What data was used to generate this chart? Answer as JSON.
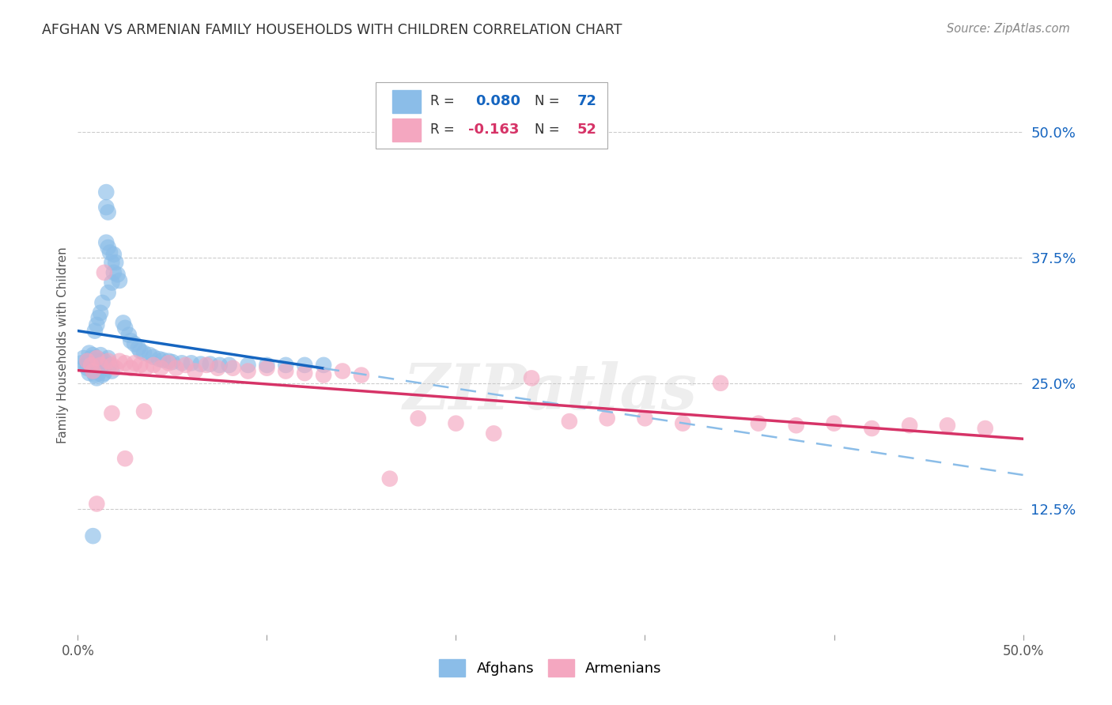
{
  "title": "AFGHAN VS ARMENIAN FAMILY HOUSEHOLDS WITH CHILDREN CORRELATION CHART",
  "source": "Source: ZipAtlas.com",
  "ylabel": "Family Households with Children",
  "xlim": [
    0.0,
    0.5
  ],
  "ylim": [
    0.0,
    0.575
  ],
  "yticks": [
    0.125,
    0.25,
    0.375,
    0.5
  ],
  "yticklabels": [
    "12.5%",
    "25.0%",
    "37.5%",
    "50.0%"
  ],
  "xtick_positions": [
    0.0,
    0.1,
    0.2,
    0.3,
    0.4,
    0.5
  ],
  "xticklabels": [
    "0.0%",
    "",
    "",
    "",
    "",
    "50.0%"
  ],
  "afghan_R": 0.08,
  "afghan_N": 72,
  "armenian_R": -0.163,
  "armenian_N": 52,
  "afghan_color": "#8bbde8",
  "armenian_color": "#f4a7c0",
  "afghan_line_color": "#1565c0",
  "armenian_line_color": "#d63367",
  "afghan_dash_color": "#8bbde8",
  "background_color": "#ffffff",
  "grid_color": "#cccccc",
  "title_color": "#333333",
  "watermark_color": "#c8c8c8",
  "watermark_text": "ZIPatlas",
  "legend_R_color": "#1565c0",
  "legend_N_color": "#1565c0",
  "legend_R2_color": "#d63367",
  "legend_N2_color": "#d63367",
  "legend_text_color": "#333333",
  "afghan_x": [
    0.002,
    0.003,
    0.004,
    0.005,
    0.005,
    0.006,
    0.006,
    0.007,
    0.007,
    0.008,
    0.008,
    0.009,
    0.009,
    0.01,
    0.01,
    0.01,
    0.011,
    0.011,
    0.012,
    0.012,
    0.013,
    0.013,
    0.014,
    0.014,
    0.015,
    0.015,
    0.016,
    0.016,
    0.017,
    0.018,
    0.019,
    0.02,
    0.021,
    0.022,
    0.024,
    0.025,
    0.027,
    0.028,
    0.03,
    0.032,
    0.033,
    0.035,
    0.038,
    0.04,
    0.043,
    0.045,
    0.048,
    0.05,
    0.055,
    0.06,
    0.065,
    0.07,
    0.075,
    0.08,
    0.09,
    0.1,
    0.11,
    0.12,
    0.13,
    0.015,
    0.016,
    0.017,
    0.018,
    0.019,
    0.018,
    0.016,
    0.013,
    0.012,
    0.011,
    0.01,
    0.009,
    0.008
  ],
  "afghan_y": [
    0.27,
    0.275,
    0.268,
    0.272,
    0.265,
    0.28,
    0.26,
    0.275,
    0.265,
    0.278,
    0.262,
    0.27,
    0.258,
    0.275,
    0.268,
    0.255,
    0.272,
    0.26,
    0.278,
    0.265,
    0.27,
    0.258,
    0.272,
    0.26,
    0.44,
    0.425,
    0.42,
    0.275,
    0.268,
    0.262,
    0.378,
    0.37,
    0.358,
    0.352,
    0.31,
    0.305,
    0.298,
    0.292,
    0.289,
    0.285,
    0.282,
    0.28,
    0.278,
    0.276,
    0.274,
    0.273,
    0.272,
    0.271,
    0.27,
    0.27,
    0.269,
    0.269,
    0.268,
    0.268,
    0.268,
    0.268,
    0.268,
    0.268,
    0.268,
    0.39,
    0.385,
    0.38,
    0.37,
    0.36,
    0.35,
    0.34,
    0.33,
    0.32,
    0.315,
    0.308,
    0.302,
    0.098
  ],
  "armenian_x": [
    0.005,
    0.007,
    0.008,
    0.01,
    0.012,
    0.014,
    0.016,
    0.018,
    0.02,
    0.022,
    0.025,
    0.028,
    0.03,
    0.033,
    0.036,
    0.04,
    0.044,
    0.048,
    0.052,
    0.057,
    0.062,
    0.068,
    0.074,
    0.082,
    0.09,
    0.1,
    0.11,
    0.12,
    0.13,
    0.14,
    0.15,
    0.165,
    0.18,
    0.2,
    0.22,
    0.24,
    0.26,
    0.28,
    0.3,
    0.32,
    0.34,
    0.36,
    0.38,
    0.4,
    0.42,
    0.44,
    0.46,
    0.48,
    0.01,
    0.018,
    0.025,
    0.035
  ],
  "armenian_y": [
    0.272,
    0.268,
    0.262,
    0.275,
    0.268,
    0.36,
    0.272,
    0.268,
    0.265,
    0.272,
    0.27,
    0.265,
    0.27,
    0.268,
    0.265,
    0.268,
    0.265,
    0.27,
    0.265,
    0.268,
    0.262,
    0.268,
    0.265,
    0.265,
    0.262,
    0.265,
    0.262,
    0.26,
    0.258,
    0.262,
    0.258,
    0.155,
    0.215,
    0.21,
    0.2,
    0.255,
    0.212,
    0.215,
    0.215,
    0.21,
    0.25,
    0.21,
    0.208,
    0.21,
    0.205,
    0.208,
    0.208,
    0.205,
    0.13,
    0.22,
    0.175,
    0.222
  ],
  "trend_solid_end": 0.13,
  "trend_dash_start": 0.13
}
